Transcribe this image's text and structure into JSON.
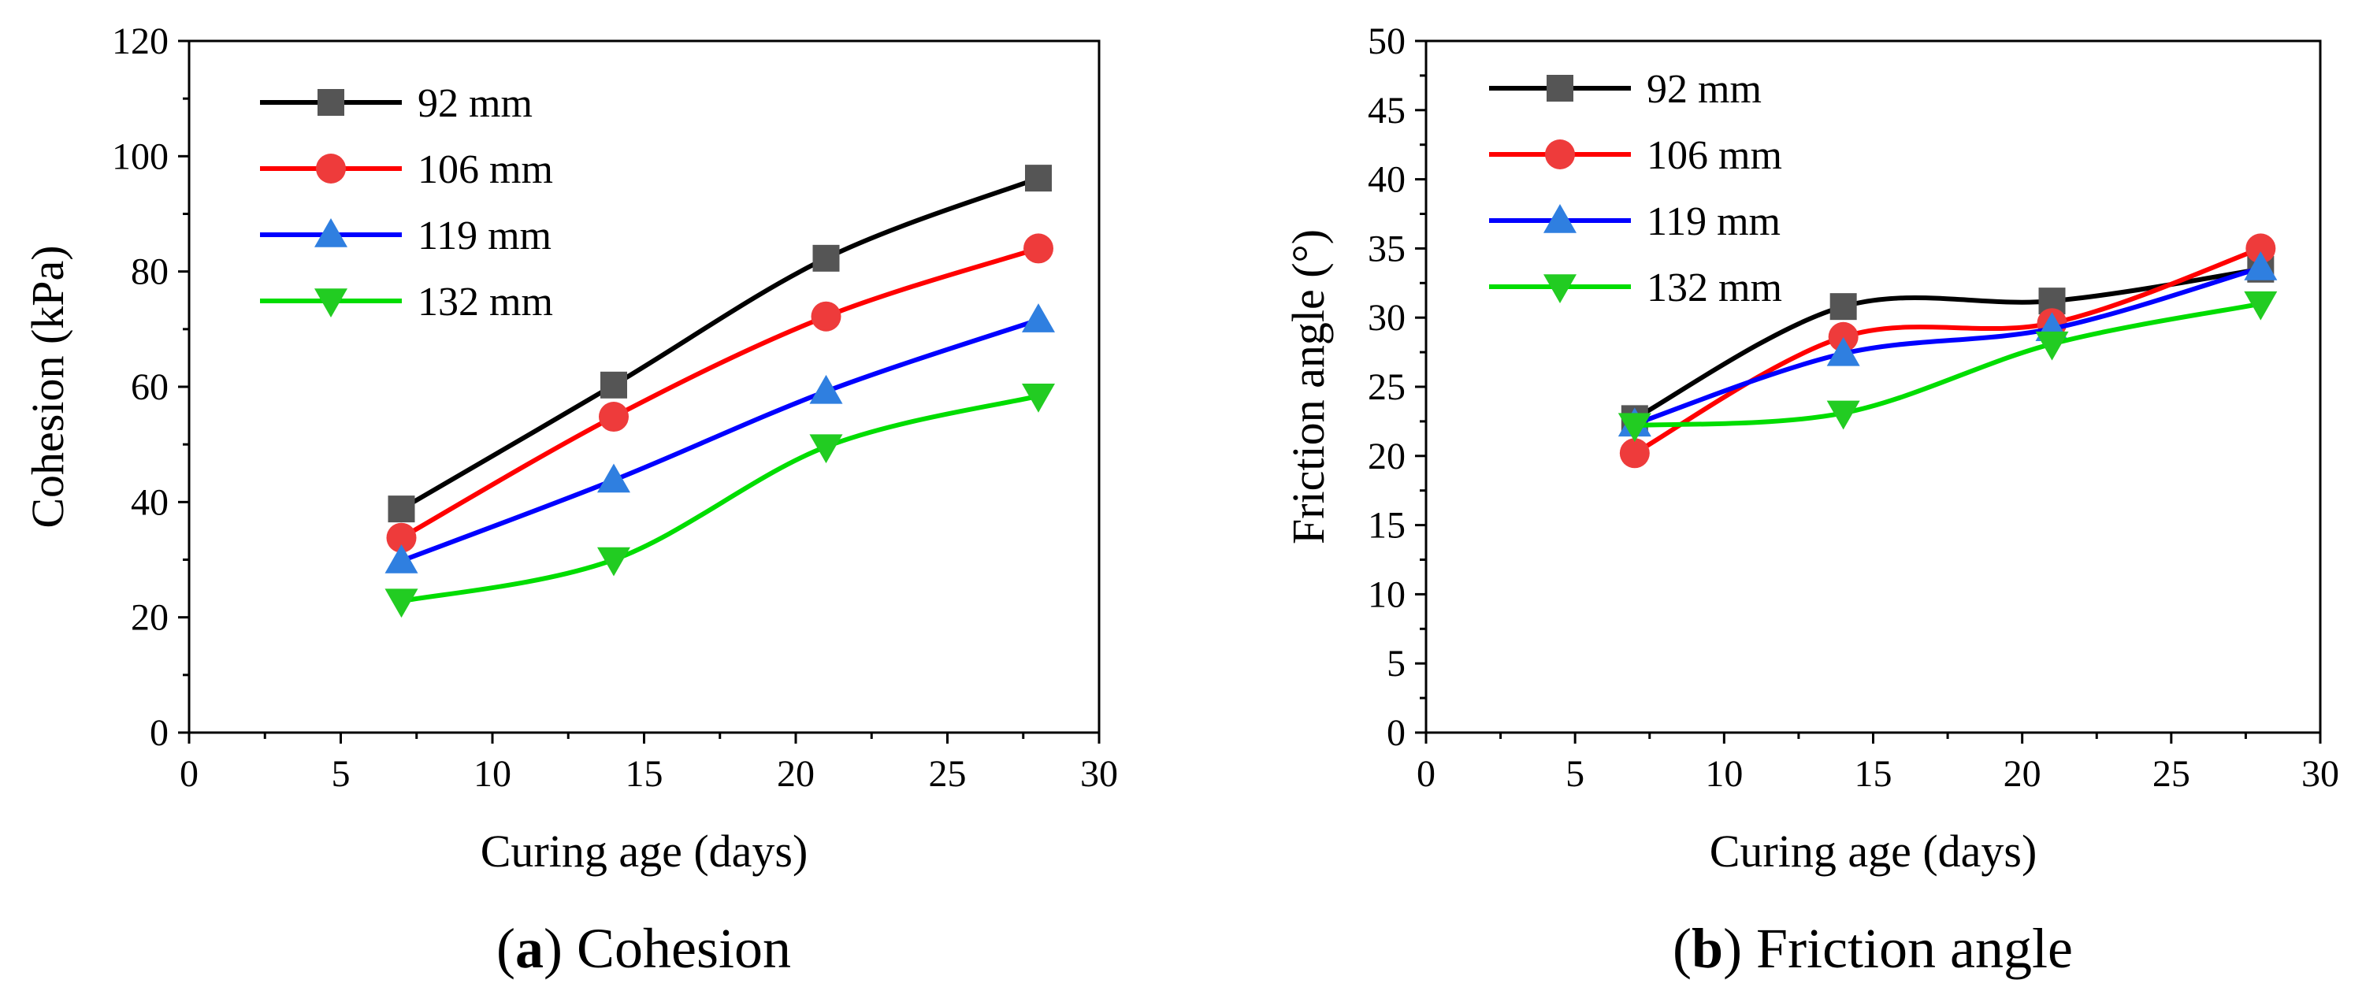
{
  "chart_data": [
    {
      "type": "line",
      "caption": {
        "letter": "a",
        "title": "Cohesion"
      },
      "xlabel": "Curing age (days)",
      "ylabel": "Cohesion (kPa)",
      "xlim": [
        0,
        30
      ],
      "ylim": [
        0,
        120
      ],
      "xticks": [
        0,
        5,
        10,
        15,
        20,
        25,
        30
      ],
      "yticks": [
        0,
        20,
        40,
        60,
        80,
        100,
        120
      ],
      "legend": "top-left",
      "grid": false,
      "x": [
        7,
        14,
        21,
        28
      ],
      "series": [
        {
          "name": "92 mm",
          "values": [
            38.8,
            60.3,
            82.3,
            96.2
          ],
          "color": "#000000",
          "marker": "square",
          "marker_color": "#555555"
        },
        {
          "name": "106 mm",
          "values": [
            33.8,
            54.8,
            72.2,
            84.0
          ],
          "color": "#ff0000",
          "marker": "circle",
          "marker_color": "#ee3b3b"
        },
        {
          "name": "119 mm",
          "values": [
            29.8,
            43.8,
            59.2,
            71.6
          ],
          "color": "#0000ff",
          "marker": "triangle",
          "marker_color": "#2f7fe0"
        },
        {
          "name": "132 mm",
          "values": [
            22.8,
            30.0,
            49.6,
            58.4
          ],
          "color": "#00dd00",
          "marker": "triangle-down",
          "marker_color": "#22cc22"
        }
      ]
    },
    {
      "type": "line",
      "caption": {
        "letter": "b",
        "title": "Friction angle"
      },
      "xlabel": "Curing age (days)",
      "ylabel": "Friction angle (°)",
      "xlim": [
        0,
        30
      ],
      "ylim": [
        0,
        50
      ],
      "xticks": [
        0,
        5,
        10,
        15,
        20,
        25,
        30
      ],
      "yticks": [
        0,
        5,
        10,
        15,
        20,
        25,
        30,
        35,
        40,
        45,
        50
      ],
      "legend": "top-left",
      "grid": false,
      "x": [
        7,
        14,
        21,
        28
      ],
      "series": [
        {
          "name": "92 mm",
          "values": [
            22.7,
            30.8,
            31.2,
            33.5
          ],
          "color": "#000000",
          "marker": "square",
          "marker_color": "#555555"
        },
        {
          "name": "106 mm",
          "values": [
            20.2,
            28.6,
            29.6,
            35.0
          ],
          "color": "#ff0000",
          "marker": "circle",
          "marker_color": "#ee3b3b"
        },
        {
          "name": "119 mm",
          "values": [
            22.3,
            27.4,
            29.2,
            33.6
          ],
          "color": "#0000ff",
          "marker": "triangle",
          "marker_color": "#2f7fe0"
        },
        {
          "name": "132 mm",
          "values": [
            22.2,
            23.1,
            28.1,
            31.0
          ],
          "color": "#00dd00",
          "marker": "triangle-down",
          "marker_color": "#22cc22"
        }
      ]
    }
  ]
}
